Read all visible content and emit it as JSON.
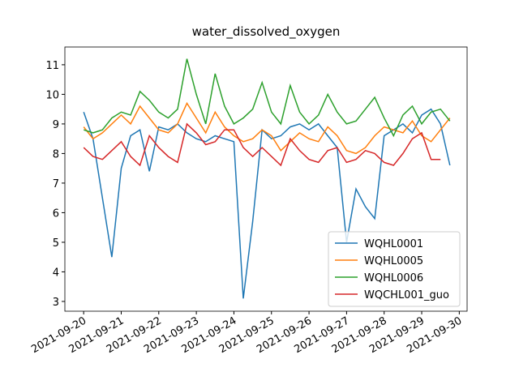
{
  "chart_data": {
    "type": "line",
    "title": "water_dissolved_oxygen",
    "x": [
      "2021-09-20T00:00",
      "2021-09-20T06:00",
      "2021-09-20T12:00",
      "2021-09-20T18:00",
      "2021-09-21T00:00",
      "2021-09-21T06:00",
      "2021-09-21T12:00",
      "2021-09-21T18:00",
      "2021-09-22T00:00",
      "2021-09-22T06:00",
      "2021-09-22T12:00",
      "2021-09-22T18:00",
      "2021-09-23T00:00",
      "2021-09-23T06:00",
      "2021-09-23T12:00",
      "2021-09-23T18:00",
      "2021-09-24T00:00",
      "2021-09-24T06:00",
      "2021-09-24T12:00",
      "2021-09-24T18:00",
      "2021-09-25T00:00",
      "2021-09-25T06:00",
      "2021-09-25T12:00",
      "2021-09-25T18:00",
      "2021-09-26T00:00",
      "2021-09-26T06:00",
      "2021-09-26T12:00",
      "2021-09-26T18:00",
      "2021-09-27T00:00",
      "2021-09-27T06:00",
      "2021-09-27T12:00",
      "2021-09-27T18:00",
      "2021-09-28T00:00",
      "2021-09-28T06:00",
      "2021-09-28T12:00",
      "2021-09-28T18:00",
      "2021-09-29T00:00",
      "2021-09-29T06:00",
      "2021-09-29T12:00",
      "2021-09-29T18:00"
    ],
    "series": [
      {
        "name": "WQHL0001",
        "color": "#1f77b4",
        "values": [
          9.4,
          8.5,
          6.5,
          4.5,
          7.5,
          8.6,
          8.8,
          7.4,
          8.9,
          8.8,
          9.0,
          8.7,
          8.5,
          8.4,
          8.6,
          8.5,
          8.4,
          3.1,
          5.7,
          8.8,
          8.5,
          8.6,
          8.9,
          9.0,
          8.8,
          9.0,
          8.6,
          8.2,
          5.0,
          6.8,
          6.2,
          5.8,
          8.6,
          8.8,
          9.0,
          8.7,
          9.3,
          9.5,
          9.0,
          7.6
        ]
      },
      {
        "name": "WQHL0005",
        "color": "#ff7f0e",
        "values": [
          8.9,
          8.5,
          8.7,
          9.0,
          9.3,
          9.0,
          9.6,
          9.2,
          8.8,
          8.7,
          9.0,
          9.7,
          9.2,
          8.7,
          9.4,
          8.9,
          8.6,
          8.4,
          8.5,
          8.8,
          8.6,
          8.1,
          8.4,
          8.7,
          8.5,
          8.4,
          8.9,
          8.6,
          8.1,
          8.0,
          8.2,
          8.6,
          8.9,
          8.8,
          8.7,
          9.1,
          8.6,
          8.4,
          8.8,
          9.2
        ]
      },
      {
        "name": "WQHL0006",
        "color": "#2ca02c",
        "values": [
          8.8,
          8.7,
          8.8,
          9.2,
          9.4,
          9.3,
          10.1,
          9.8,
          9.4,
          9.2,
          9.5,
          11.2,
          10.0,
          9.0,
          10.7,
          9.6,
          9.0,
          9.2,
          9.5,
          10.4,
          9.4,
          9.0,
          10.3,
          9.4,
          9.0,
          9.3,
          10.0,
          9.4,
          9.0,
          9.1,
          9.5,
          9.9,
          9.2,
          8.6,
          9.3,
          9.6,
          9.0,
          9.4,
          9.5,
          9.1
        ]
      },
      {
        "name": "WQCHL001_guo",
        "color": "#d62728",
        "values": [
          8.2,
          7.9,
          7.8,
          8.1,
          8.4,
          7.9,
          7.6,
          8.6,
          8.2,
          7.9,
          7.7,
          9.0,
          8.7,
          8.3,
          8.4,
          8.8,
          8.8,
          8.2,
          7.9,
          8.2,
          7.9,
          7.6,
          8.5,
          8.1,
          7.8,
          7.7,
          8.1,
          8.2,
          7.7,
          7.8,
          8.1,
          8.0,
          7.7,
          7.6,
          8.0,
          8.5,
          8.7,
          7.8,
          7.8,
          null
        ]
      }
    ],
    "xlim": [
      "2021-09-19T12:00",
      "2021-09-30T05:00"
    ],
    "xticks": [
      "2021-09-20",
      "2021-09-21",
      "2021-09-22",
      "2021-09-23",
      "2021-09-24",
      "2021-09-25",
      "2021-09-26",
      "2021-09-27",
      "2021-09-28",
      "2021-09-29",
      "2021-09-30"
    ],
    "ylim": [
      2.67,
      11.6
    ],
    "yticks": [
      3,
      4,
      5,
      6,
      7,
      8,
      9,
      10,
      11
    ],
    "legend": "lower right"
  }
}
